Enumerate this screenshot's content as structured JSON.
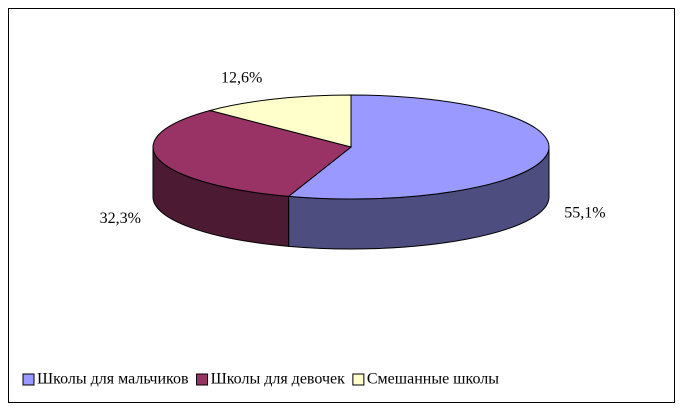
{
  "chart_data": {
    "type": "pie3d",
    "categories": [
      "Школы для мальчиков",
      "Школы для девочек",
      "Смешанные школы"
    ],
    "values": [
      55.1,
      32.3,
      12.6
    ],
    "value_labels": [
      "55,1%",
      "32,3%",
      "12,6%"
    ],
    "colors": [
      "#9999ff",
      "#993366",
      "#ffffcc"
    ],
    "legend": "bottom"
  }
}
